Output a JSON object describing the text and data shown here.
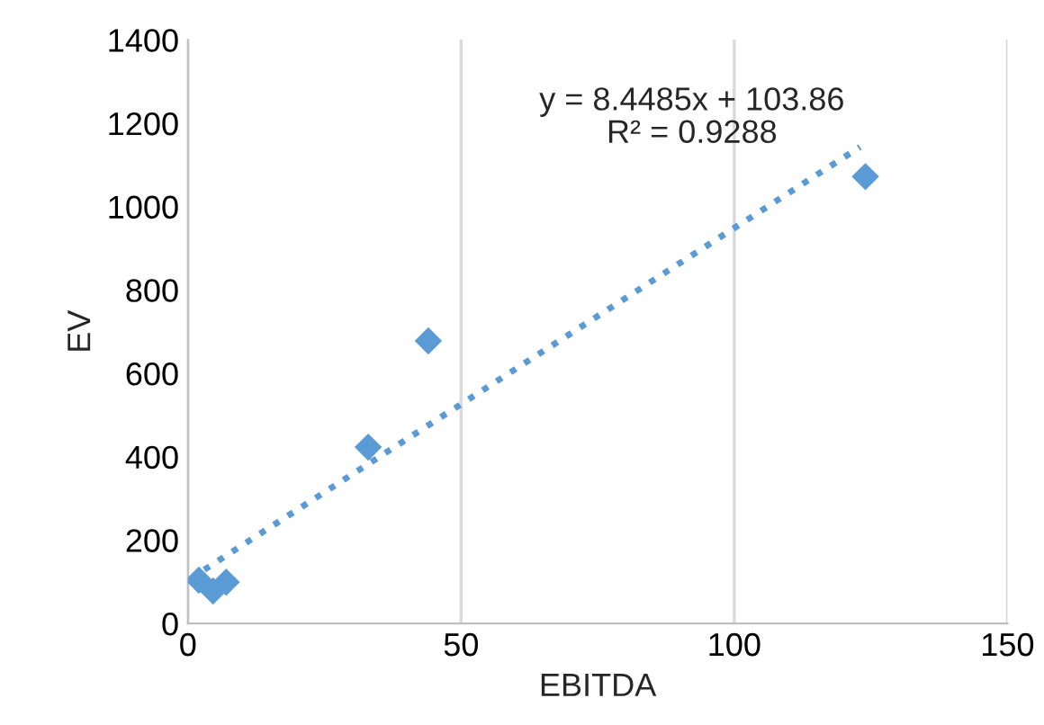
{
  "chart_data": {
    "type": "scatter",
    "xlabel": "EBITDA",
    "ylabel": "EV",
    "xlim": [
      0,
      150
    ],
    "xticks": [
      0,
      50,
      100,
      150
    ],
    "ylim": [
      0,
      1400
    ],
    "yticks": [
      0,
      200,
      400,
      600,
      800,
      1000,
      1200,
      1400
    ],
    "grid": "x",
    "marker": "diamond",
    "series": [
      {
        "color": "#5b9bd5",
        "x": [
          2,
          4.6,
          7,
          33,
          44,
          124
        ],
        "values": [
          104,
          78,
          99,
          423,
          678,
          1072
        ]
      },
      {
        "type": "line",
        "color": "#5b9bd5",
        "line_style": "dotted",
        "marker": "none",
        "x": [
          3,
          123
        ],
        "values": [
          129,
          1143
        ]
      }
    ],
    "annotations": [
      "y = 8.4485x + 103.86\nR² = 0.9288"
    ]
  }
}
